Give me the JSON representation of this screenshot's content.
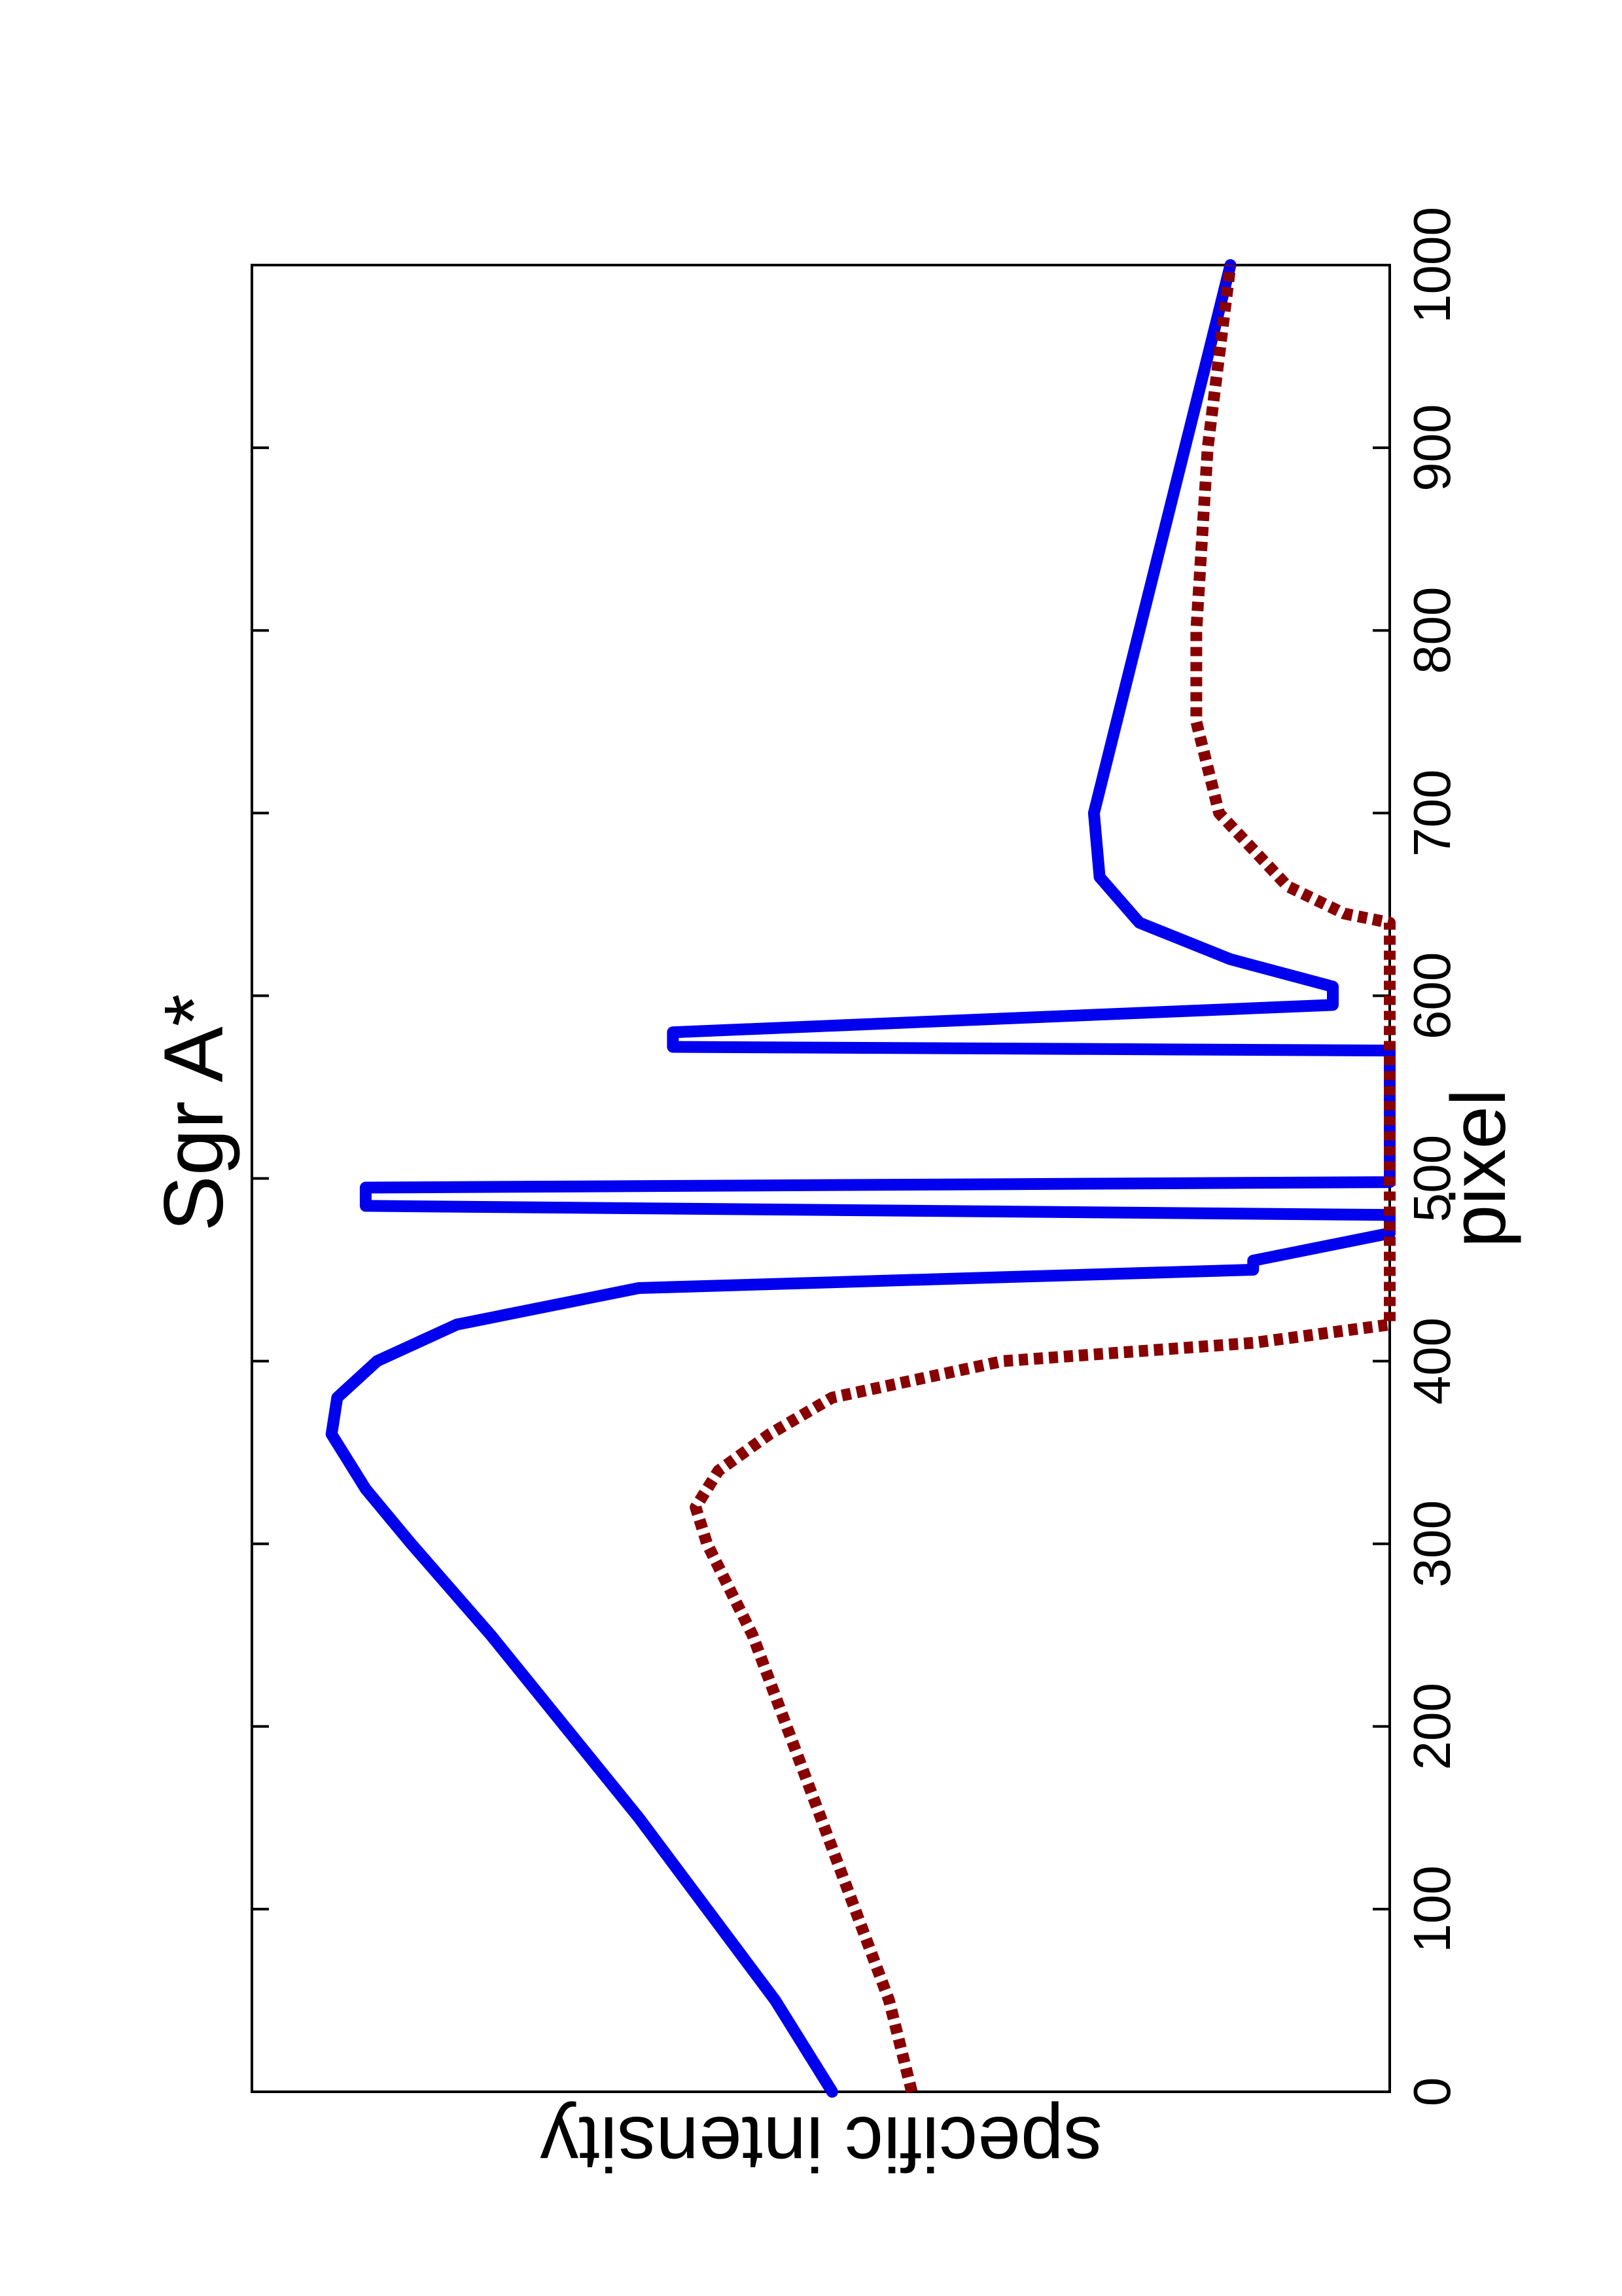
{
  "chart_data": {
    "type": "line",
    "title": "Sgr A*",
    "xlabel": "pixel",
    "ylabel": "specific intensity",
    "xlim": [
      0,
      1000
    ],
    "ylim": [
      0,
      1
    ],
    "xticks": [
      0,
      100,
      200,
      300,
      400,
      500,
      600,
      700,
      800,
      900,
      1000
    ],
    "yticks_labeled": false,
    "grid": false,
    "orientation": "rotated 90° counter-clockwise (landscape figure on portrait page)",
    "series": [
      {
        "style": "solid",
        "color": "#0000ee",
        "points": [
          [
            0,
            0.49
          ],
          [
            50,
            0.54
          ],
          [
            100,
            0.6
          ],
          [
            150,
            0.66
          ],
          [
            200,
            0.725
          ],
          [
            250,
            0.79
          ],
          [
            300,
            0.86
          ],
          [
            330,
            0.9
          ],
          [
            360,
            0.93
          ],
          [
            380,
            0.925
          ],
          [
            400,
            0.89
          ],
          [
            420,
            0.82
          ],
          [
            440,
            0.66
          ],
          [
            450,
            0.12
          ],
          [
            455,
            0.12
          ],
          [
            470,
            0.0
          ],
          [
            480,
            0.0
          ],
          [
            485,
            0.9
          ],
          [
            495,
            0.9
          ],
          [
            498,
            0.0
          ],
          [
            570,
            0.0
          ],
          [
            572,
            0.63
          ],
          [
            580,
            0.63
          ],
          [
            595,
            0.05
          ],
          [
            605,
            0.05
          ],
          [
            620,
            0.14
          ],
          [
            640,
            0.22
          ],
          [
            665,
            0.255
          ],
          [
            700,
            0.26
          ],
          [
            750,
            0.24
          ],
          [
            800,
            0.22
          ],
          [
            850,
            0.2
          ],
          [
            900,
            0.18
          ],
          [
            950,
            0.16
          ],
          [
            1000,
            0.14
          ]
        ]
      },
      {
        "style": "dashed",
        "color": "#880000",
        "points": [
          [
            0,
            0.42
          ],
          [
            50,
            0.44
          ],
          [
            100,
            0.47
          ],
          [
            150,
            0.5
          ],
          [
            200,
            0.53
          ],
          [
            250,
            0.56
          ],
          [
            300,
            0.6
          ],
          [
            320,
            0.61
          ],
          [
            340,
            0.59
          ],
          [
            360,
            0.545
          ],
          [
            380,
            0.49
          ],
          [
            400,
            0.34
          ],
          [
            410,
            0.12
          ],
          [
            420,
            0.0
          ],
          [
            640,
            0.0
          ],
          [
            645,
            0.04
          ],
          [
            660,
            0.09
          ],
          [
            700,
            0.15
          ],
          [
            750,
            0.17
          ],
          [
            800,
            0.17
          ],
          [
            850,
            0.165
          ],
          [
            900,
            0.16
          ],
          [
            950,
            0.15
          ],
          [
            1000,
            0.14
          ]
        ]
      }
    ]
  }
}
